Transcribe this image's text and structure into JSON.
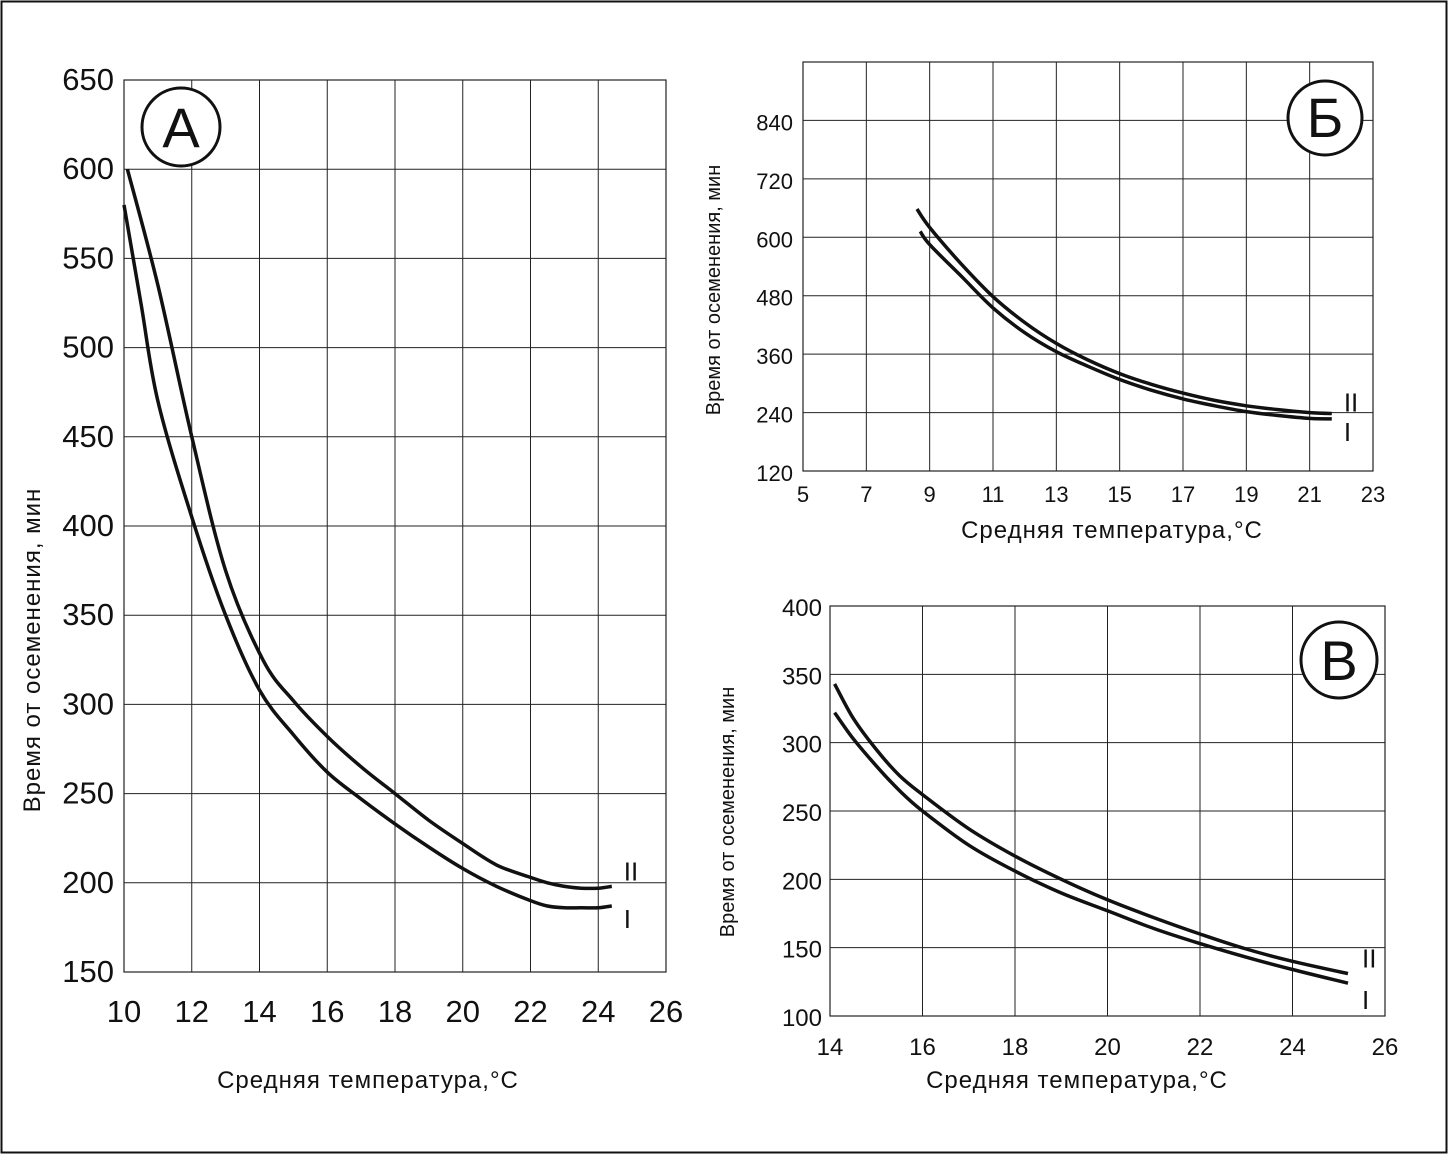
{
  "chart_data": [
    {
      "type": "line",
      "badge": "А",
      "xlabel": "Средняя температура,°С",
      "ylabel": "Время от осеменения, мин",
      "xlim": [
        10,
        26
      ],
      "ylim": [
        150,
        650
      ],
      "grid": true,
      "x_ticks": [
        "10",
        "12",
        "14",
        "16",
        "18",
        "20",
        "22",
        "24",
        "26"
      ],
      "y_ticks": [
        "150",
        "200",
        "250",
        "300",
        "350",
        "400",
        "450",
        "500",
        "550",
        "600",
        "650"
      ],
      "series": [
        {
          "name": "II",
          "x": [
            10.1,
            11,
            12,
            13,
            14.1,
            15,
            16,
            17,
            18,
            19,
            20,
            21,
            22,
            22.5,
            23,
            23.5,
            24,
            24.4
          ],
          "y": [
            600,
            535,
            450,
            375,
            325,
            302,
            282,
            265,
            250,
            235,
            222,
            210,
            203,
            200,
            198,
            197,
            197,
            198
          ]
        },
        {
          "name": "I",
          "x": [
            10,
            10.5,
            11,
            12,
            13,
            14,
            15,
            16,
            17,
            18,
            19,
            20,
            21,
            22,
            22.5,
            23,
            23.5,
            24,
            24.4
          ],
          "y": [
            580,
            525,
            470,
            405,
            350,
            308,
            283,
            262,
            247,
            233,
            220,
            208,
            198,
            190,
            187,
            186,
            186,
            186,
            187
          ]
        }
      ]
    },
    {
      "type": "line",
      "badge": "Б",
      "xlabel": "Средняя температура,°С",
      "ylabel": "Время от осеменения, мин",
      "xlim": [
        5,
        23
      ],
      "ylim": [
        120,
        960
      ],
      "grid": true,
      "x_ticks": [
        "5",
        "7",
        "9",
        "11",
        "13",
        "15",
        "17",
        "19",
        "21",
        "23"
      ],
      "y_ticks": [
        "120",
        "240",
        "360",
        "480",
        "600",
        "720",
        "840"
      ],
      "series": [
        {
          "name": "II",
          "x": [
            8.6,
            9,
            10,
            11,
            12,
            13,
            14,
            15,
            16,
            17,
            18,
            19,
            20,
            21,
            21.7
          ],
          "y": [
            658,
            620,
            545,
            478,
            425,
            382,
            348,
            320,
            298,
            280,
            265,
            254,
            246,
            240,
            238
          ]
        },
        {
          "name": "I",
          "x": [
            8.7,
            9,
            10,
            11,
            12,
            13,
            14,
            15,
            16,
            17,
            18,
            19,
            20,
            21,
            21.7
          ],
          "y": [
            612,
            585,
            520,
            455,
            404,
            365,
            335,
            308,
            286,
            268,
            254,
            242,
            234,
            228,
            227
          ]
        }
      ]
    },
    {
      "type": "line",
      "badge": "В",
      "xlabel": "Средняя температура,°С",
      "ylabel": "Время от осеменения, мин",
      "xlim": [
        14,
        26
      ],
      "ylim": [
        100,
        400
      ],
      "grid": true,
      "x_ticks": [
        "14",
        "16",
        "18",
        "20",
        "22",
        "24",
        "26"
      ],
      "y_ticks": [
        "100",
        "150",
        "200",
        "250",
        "300",
        "350",
        "400"
      ],
      "series": [
        {
          "name": "II",
          "x": [
            14.1,
            14.5,
            15,
            15.5,
            16,
            17,
            18,
            19,
            20,
            21,
            22,
            23,
            24,
            25.2
          ],
          "y": [
            343,
            318,
            295,
            276,
            262,
            237,
            217,
            200,
            185,
            172,
            160,
            149,
            140,
            131
          ]
        },
        {
          "name": "I",
          "x": [
            14.1,
            14.5,
            15,
            15.5,
            16,
            17,
            18,
            19,
            20,
            21,
            22,
            23,
            24,
            25.2
          ],
          "y": [
            322,
            303,
            283,
            265,
            250,
            225,
            206,
            190,
            177,
            164,
            153,
            143,
            134,
            124
          ]
        }
      ]
    }
  ]
}
